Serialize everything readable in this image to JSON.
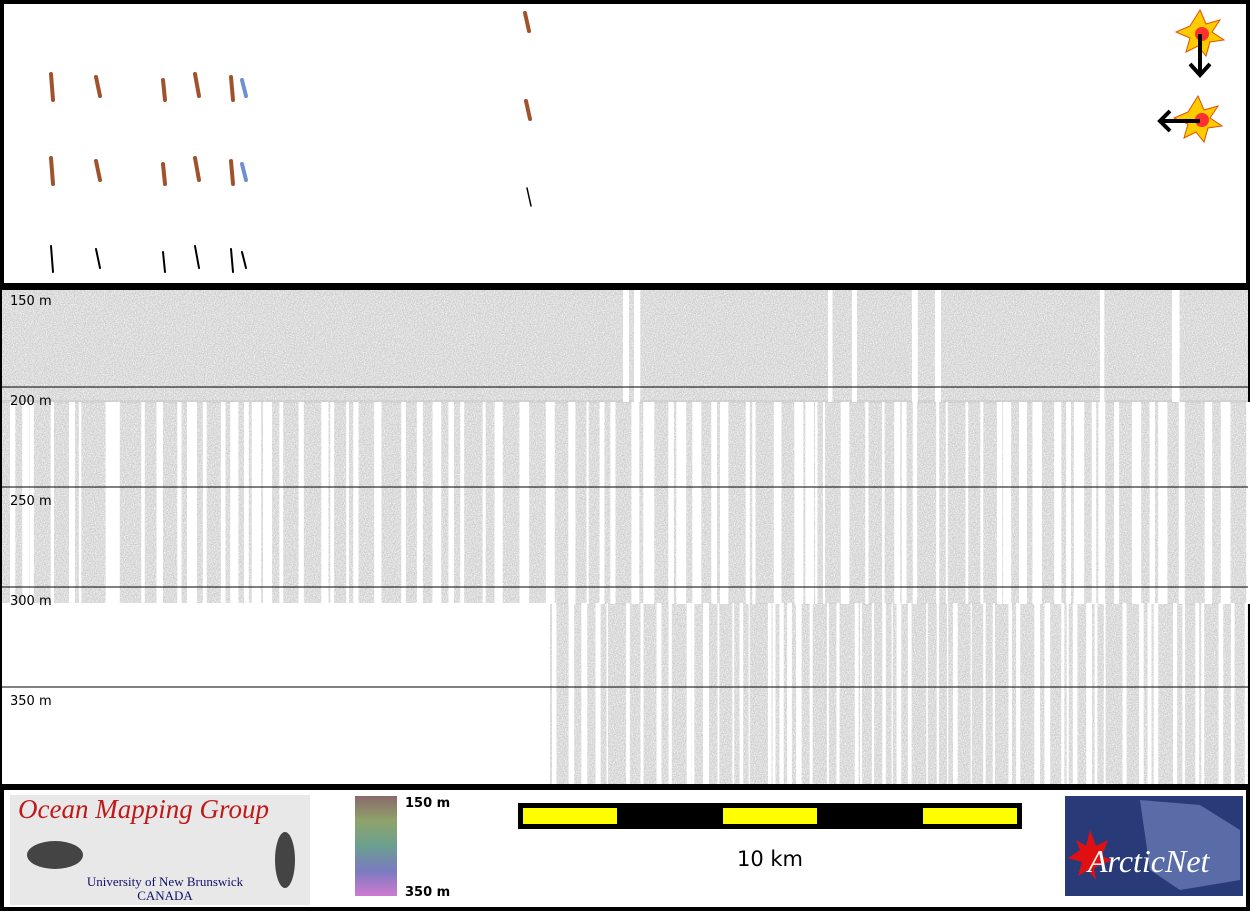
{
  "depth_axis": {
    "labels": [
      "150 m",
      "200 m",
      "250 m",
      "300 m",
      "350 m"
    ]
  },
  "logo": {
    "title": "Ocean Mapping Group",
    "line1": "University of New Brunswick",
    "line2": "CANADA"
  },
  "colorbar": {
    "top": "150 m",
    "bottom": "350 m"
  },
  "scale_bar": {
    "label": "10 km"
  },
  "partner": {
    "name": "ArcticNet"
  }
}
